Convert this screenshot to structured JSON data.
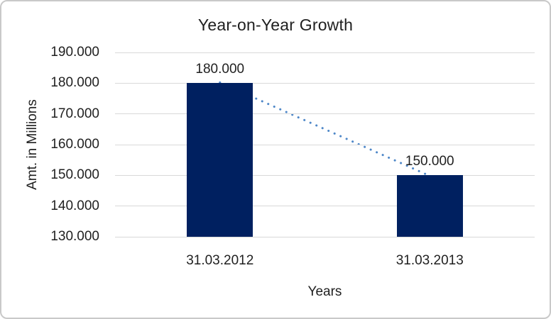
{
  "chart_data": {
    "type": "bar",
    "title": "Year-on-Year Growth",
    "xlabel": "Years",
    "ylabel": "Amt. in Millions",
    "categories": [
      "31.03.2012",
      "31.03.2013"
    ],
    "values": [
      180000,
      150000
    ],
    "data_labels": [
      "180.000",
      "150.000"
    ],
    "ylim": [
      130000,
      190000
    ],
    "ytick_values": [
      190000,
      180000,
      170000,
      160000,
      150000,
      140000,
      130000
    ],
    "ytick_labels": [
      "190.000",
      "180.000",
      "170.000",
      "160.000",
      "150.000",
      "140.000",
      "130.000"
    ],
    "grid": true,
    "legend_position": "none",
    "bar_color": "#002060",
    "grid_color": "#D9D9D9",
    "text_color": "#1F1F1F",
    "trendline": {
      "style": "dotted",
      "color": "#4E87C8",
      "from_value": 180000,
      "to_value": 150000
    }
  }
}
